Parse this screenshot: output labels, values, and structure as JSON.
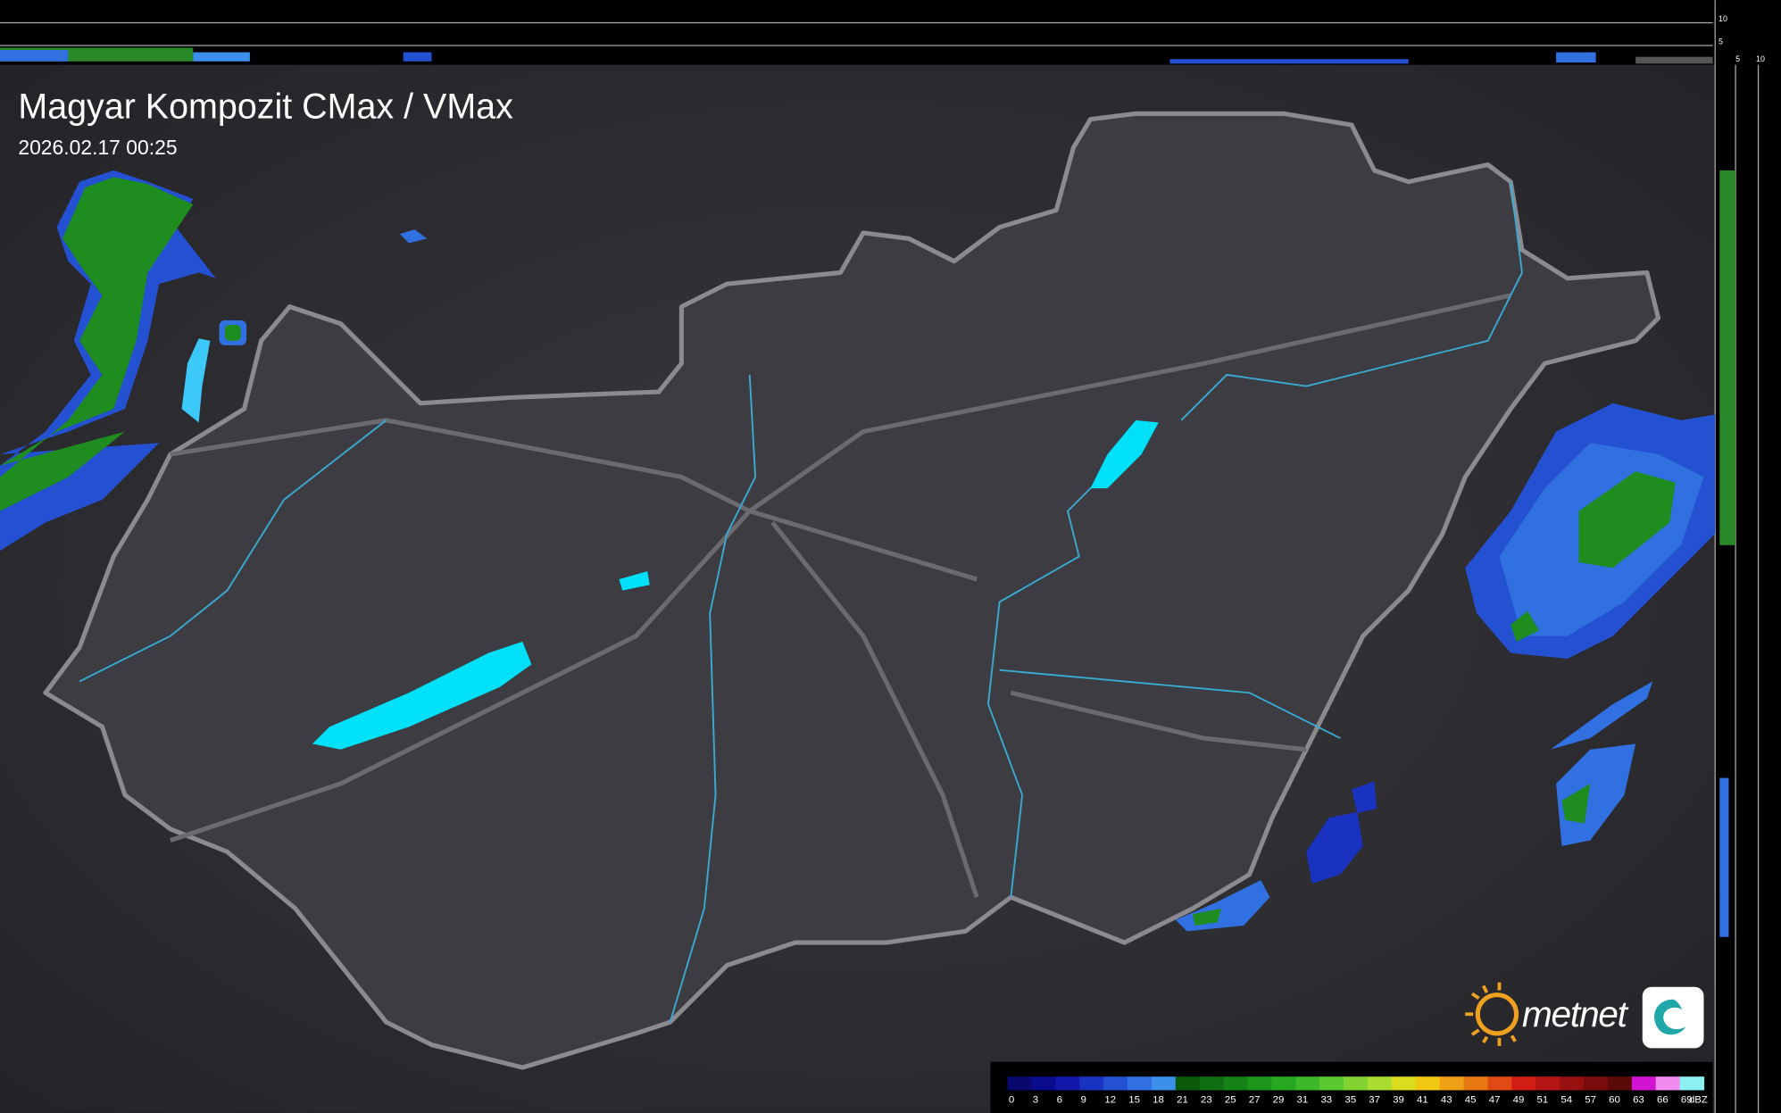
{
  "header": {
    "title": "Magyar Kompozit CMax / VMax",
    "timestamp": "2026.02.17 00:25"
  },
  "logo": {
    "text": "metnet"
  },
  "profile_axes": {
    "top": [
      10,
      5
    ],
    "bottom": [
      5,
      10
    ]
  },
  "legend": {
    "unit": "dBZ",
    "stops": [
      {
        "value": 0,
        "color": "#08086e"
      },
      {
        "value": 3,
        "color": "#0a0a8c"
      },
      {
        "value": 6,
        "color": "#1218aa"
      },
      {
        "value": 9,
        "color": "#1a32c0"
      },
      {
        "value": 12,
        "color": "#2450d2"
      },
      {
        "value": 15,
        "color": "#3070e0"
      },
      {
        "value": 18,
        "color": "#3c90ec"
      },
      {
        "value": 21,
        "color": "#0a5a0a"
      },
      {
        "value": 23,
        "color": "#0e6e10"
      },
      {
        "value": 25,
        "color": "#148214"
      },
      {
        "value": 27,
        "color": "#1c961a"
      },
      {
        "value": 29,
        "color": "#28a820"
      },
      {
        "value": 31,
        "color": "#3cb828"
      },
      {
        "value": 33,
        "color": "#5ac830"
      },
      {
        "value": 35,
        "color": "#82d232"
      },
      {
        "value": 37,
        "color": "#aadc32"
      },
      {
        "value": 39,
        "color": "#dcdc1e"
      },
      {
        "value": 41,
        "color": "#f0c814"
      },
      {
        "value": 43,
        "color": "#f0a014"
      },
      {
        "value": 45,
        "color": "#e87814"
      },
      {
        "value": 47,
        "color": "#e04a14"
      },
      {
        "value": 49,
        "color": "#d21e14"
      },
      {
        "value": 51,
        "color": "#b41414"
      },
      {
        "value": 54,
        "color": "#961010"
      },
      {
        "value": 57,
        "color": "#780c0c"
      },
      {
        "value": 60,
        "color": "#5a0808"
      },
      {
        "value": 63,
        "color": "#d214d2"
      },
      {
        "value": 66,
        "color": "#f08cf0"
      },
      {
        "value": 69,
        "color": "#8cf0f0"
      }
    ]
  }
}
